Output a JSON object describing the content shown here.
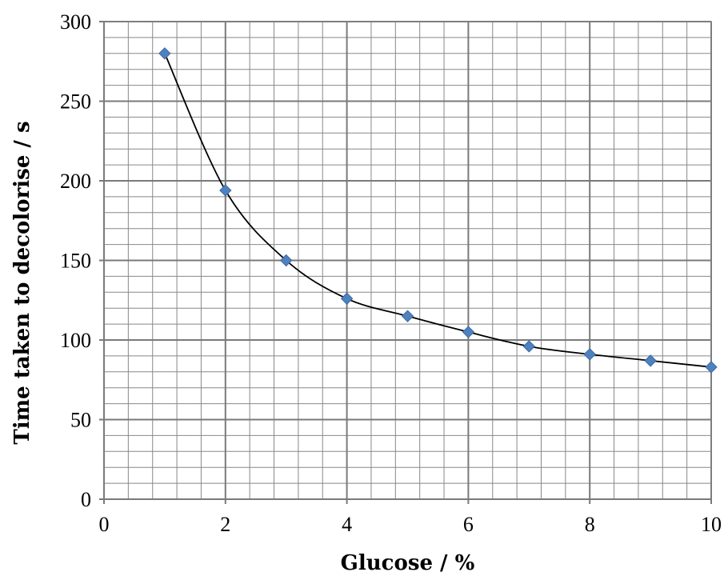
{
  "chart_data": {
    "type": "scatter",
    "xlabel": "Glucose / %",
    "ylabel": "Time taken to decolorise / s",
    "xlim": [
      0,
      10
    ],
    "ylim": [
      0,
      300
    ],
    "x_ticks": [
      0,
      2,
      4,
      6,
      8,
      10
    ],
    "y_ticks": [
      0,
      50,
      100,
      150,
      200,
      250,
      300
    ],
    "x_tick_labels": [
      "0",
      "2",
      "4",
      "6",
      "8",
      "10"
    ],
    "y_tick_labels": [
      "0",
      "50",
      "100",
      "150",
      "200",
      "250",
      "300"
    ],
    "grid": true,
    "minor_grid": true,
    "legend": "none",
    "series": [
      {
        "marker": "diamond",
        "color": "#4f81bd",
        "trendline": "smooth curve",
        "points": [
          {
            "x": 1,
            "y": 280
          },
          {
            "x": 2,
            "y": 194
          },
          {
            "x": 3,
            "y": 150
          },
          {
            "x": 4,
            "y": 126
          },
          {
            "x": 5,
            "y": 115
          },
          {
            "x": 6,
            "y": 105
          },
          {
            "x": 7,
            "y": 96
          },
          {
            "x": 8,
            "y": 91
          },
          {
            "x": 9,
            "y": 87
          },
          {
            "x": 10,
            "y": 83
          }
        ]
      }
    ]
  }
}
